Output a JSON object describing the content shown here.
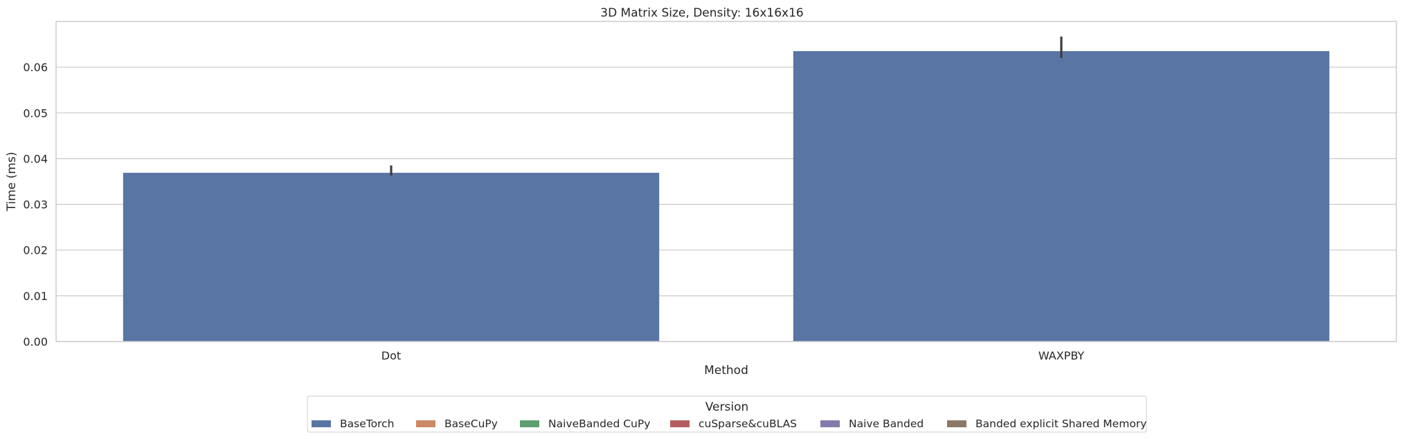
{
  "chart_data": {
    "type": "bar",
    "title": "3D Matrix Size, Density: 16x16x16",
    "xlabel": "Method",
    "ylabel": "Time (ms)",
    "categories": [
      "Dot",
      "WAXPBY"
    ],
    "ylim": [
      0,
      0.07
    ],
    "yticks": [
      0.0,
      0.01,
      0.02,
      0.03,
      0.04,
      0.05,
      0.06
    ],
    "ytick_labels": [
      "0.00",
      "0.01",
      "0.02",
      "0.03",
      "0.04",
      "0.05",
      "0.06"
    ],
    "grid": "horizontal",
    "series": [
      {
        "name": "BaseTorch",
        "color": "#5975a4",
        "values": [
          0.0369,
          0.0635
        ],
        "error_low": [
          0.0363,
          0.062
        ],
        "error_high": [
          0.0385,
          0.0667
        ]
      }
    ],
    "legend": {
      "title": "Version",
      "placement": "bottom-center",
      "entries": [
        {
          "label": "BaseTorch",
          "color": "#5975a4"
        },
        {
          "label": "BaseCuPy",
          "color": "#cc8963"
        },
        {
          "label": "NaiveBanded CuPy",
          "color": "#5f9e6e"
        },
        {
          "label": "cuSparse&cuBLAS",
          "color": "#b55d60"
        },
        {
          "label": "Naive Banded",
          "color": "#857aab"
        },
        {
          "label": "Banded explicit Shared Memory",
          "color": "#8d7866"
        }
      ]
    }
  }
}
